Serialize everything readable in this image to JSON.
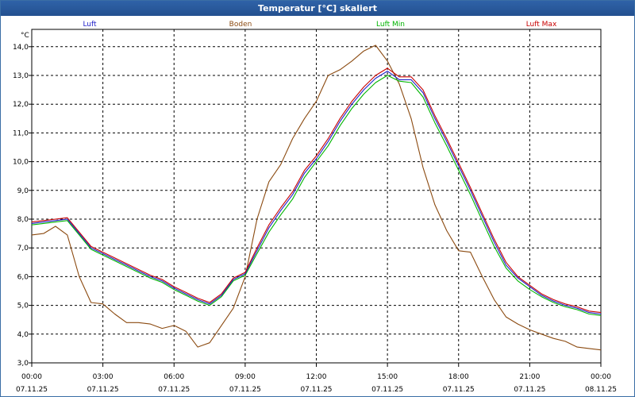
{
  "window": {
    "title": "Temperatur [°C] skaliert"
  },
  "chart_data": {
    "type": "line",
    "title": "Temperatur [°C] skaliert",
    "ylabel": "°C",
    "xlabel": "",
    "ylim": [
      3.0,
      14.0
    ],
    "y_ticks": [
      "3,0",
      "4,0",
      "5,0",
      "6,0",
      "7,0",
      "8,0",
      "9,0",
      "10,0",
      "11,0",
      "12,0",
      "13,0",
      "14,0"
    ],
    "x_ticks": [
      {
        "time": "00:00",
        "date": "07.11.25"
      },
      {
        "time": "03:00",
        "date": "07.11.25"
      },
      {
        "time": "06:00",
        "date": "07.11.25"
      },
      {
        "time": "09:00",
        "date": "07.11.25"
      },
      {
        "time": "12:00",
        "date": "07.11.25"
      },
      {
        "time": "15:00",
        "date": "07.11.25"
      },
      {
        "time": "18:00",
        "date": "07.11.25"
      },
      {
        "time": "21:00",
        "date": "07.11.25"
      },
      {
        "time": "00:00",
        "date": "08.11.25"
      }
    ],
    "legend": [
      {
        "name": "Luft",
        "color": "#2020c8"
      },
      {
        "name": "Boden",
        "color": "#8b4a10"
      },
      {
        "name": "Luft Min",
        "color": "#00b400"
      },
      {
        "name": "Luft Max",
        "color": "#c80000"
      }
    ],
    "x_hours": [
      0,
      0.5,
      1,
      1.5,
      2,
      2.5,
      3,
      3.5,
      4,
      4.5,
      5,
      5.5,
      6,
      6.5,
      7,
      7.5,
      8,
      8.5,
      9,
      9.5,
      10,
      10.5,
      11,
      11.5,
      12,
      12.5,
      13,
      13.5,
      14,
      14.5,
      15,
      15.5,
      16,
      16.5,
      17,
      17.5,
      18,
      18.5,
      19,
      19.5,
      20,
      20.5,
      21,
      21.5,
      22,
      22.5,
      23,
      23.5,
      24
    ],
    "series": [
      {
        "name": "Luft",
        "color": "#2020c8",
        "values": [
          7.85,
          7.9,
          7.95,
          8.0,
          7.5,
          7.0,
          6.8,
          6.6,
          6.4,
          6.2,
          6.0,
          5.85,
          5.6,
          5.4,
          5.2,
          5.05,
          5.35,
          5.9,
          6.1,
          6.9,
          7.7,
          8.3,
          8.85,
          9.6,
          10.1,
          10.7,
          11.4,
          12.0,
          12.5,
          12.9,
          13.15,
          12.85,
          12.85,
          12.4,
          11.5,
          10.7,
          9.85,
          9.0,
          8.1,
          7.2,
          6.4,
          5.95,
          5.65,
          5.35,
          5.15,
          5.0,
          4.9,
          4.75,
          4.7
        ]
      },
      {
        "name": "Boden",
        "color": "#8b4a10",
        "values": [
          7.45,
          7.5,
          7.75,
          7.45,
          6.0,
          5.1,
          5.05,
          4.7,
          4.4,
          4.4,
          4.35,
          4.2,
          4.3,
          4.1,
          3.55,
          3.7,
          4.3,
          4.9,
          6.0,
          8.0,
          9.3,
          9.9,
          10.8,
          11.5,
          12.1,
          13.0,
          13.2,
          13.5,
          13.85,
          14.05,
          13.5,
          12.7,
          11.5,
          9.8,
          8.5,
          7.6,
          6.9,
          6.85,
          6.0,
          5.2,
          4.6,
          4.35,
          4.15,
          4.0,
          3.85,
          3.75,
          3.55,
          3.5,
          3.45
        ]
      },
      {
        "name": "Luft Min",
        "color": "#00b400",
        "values": [
          7.8,
          7.85,
          7.9,
          7.95,
          7.45,
          6.95,
          6.75,
          6.55,
          6.35,
          6.15,
          5.95,
          5.8,
          5.55,
          5.35,
          5.15,
          5.0,
          5.3,
          5.85,
          6.05,
          6.8,
          7.55,
          8.15,
          8.7,
          9.45,
          10.0,
          10.55,
          11.25,
          11.85,
          12.35,
          12.75,
          13.0,
          12.8,
          12.75,
          12.25,
          11.35,
          10.55,
          9.7,
          8.85,
          7.95,
          7.05,
          6.3,
          5.85,
          5.55,
          5.3,
          5.1,
          4.95,
          4.85,
          4.7,
          4.65
        ]
      },
      {
        "name": "Luft Max",
        "color": "#c80000",
        "values": [
          7.9,
          7.95,
          8.0,
          8.05,
          7.55,
          7.05,
          6.85,
          6.65,
          6.45,
          6.25,
          6.05,
          5.9,
          5.65,
          5.45,
          5.25,
          5.1,
          5.4,
          5.95,
          6.15,
          7.0,
          7.8,
          8.4,
          8.95,
          9.7,
          10.2,
          10.8,
          11.5,
          12.1,
          12.6,
          13.0,
          13.25,
          12.95,
          12.95,
          12.5,
          11.6,
          10.8,
          9.95,
          9.1,
          8.2,
          7.3,
          6.5,
          6.0,
          5.7,
          5.4,
          5.2,
          5.05,
          4.95,
          4.8,
          4.75
        ]
      }
    ]
  }
}
